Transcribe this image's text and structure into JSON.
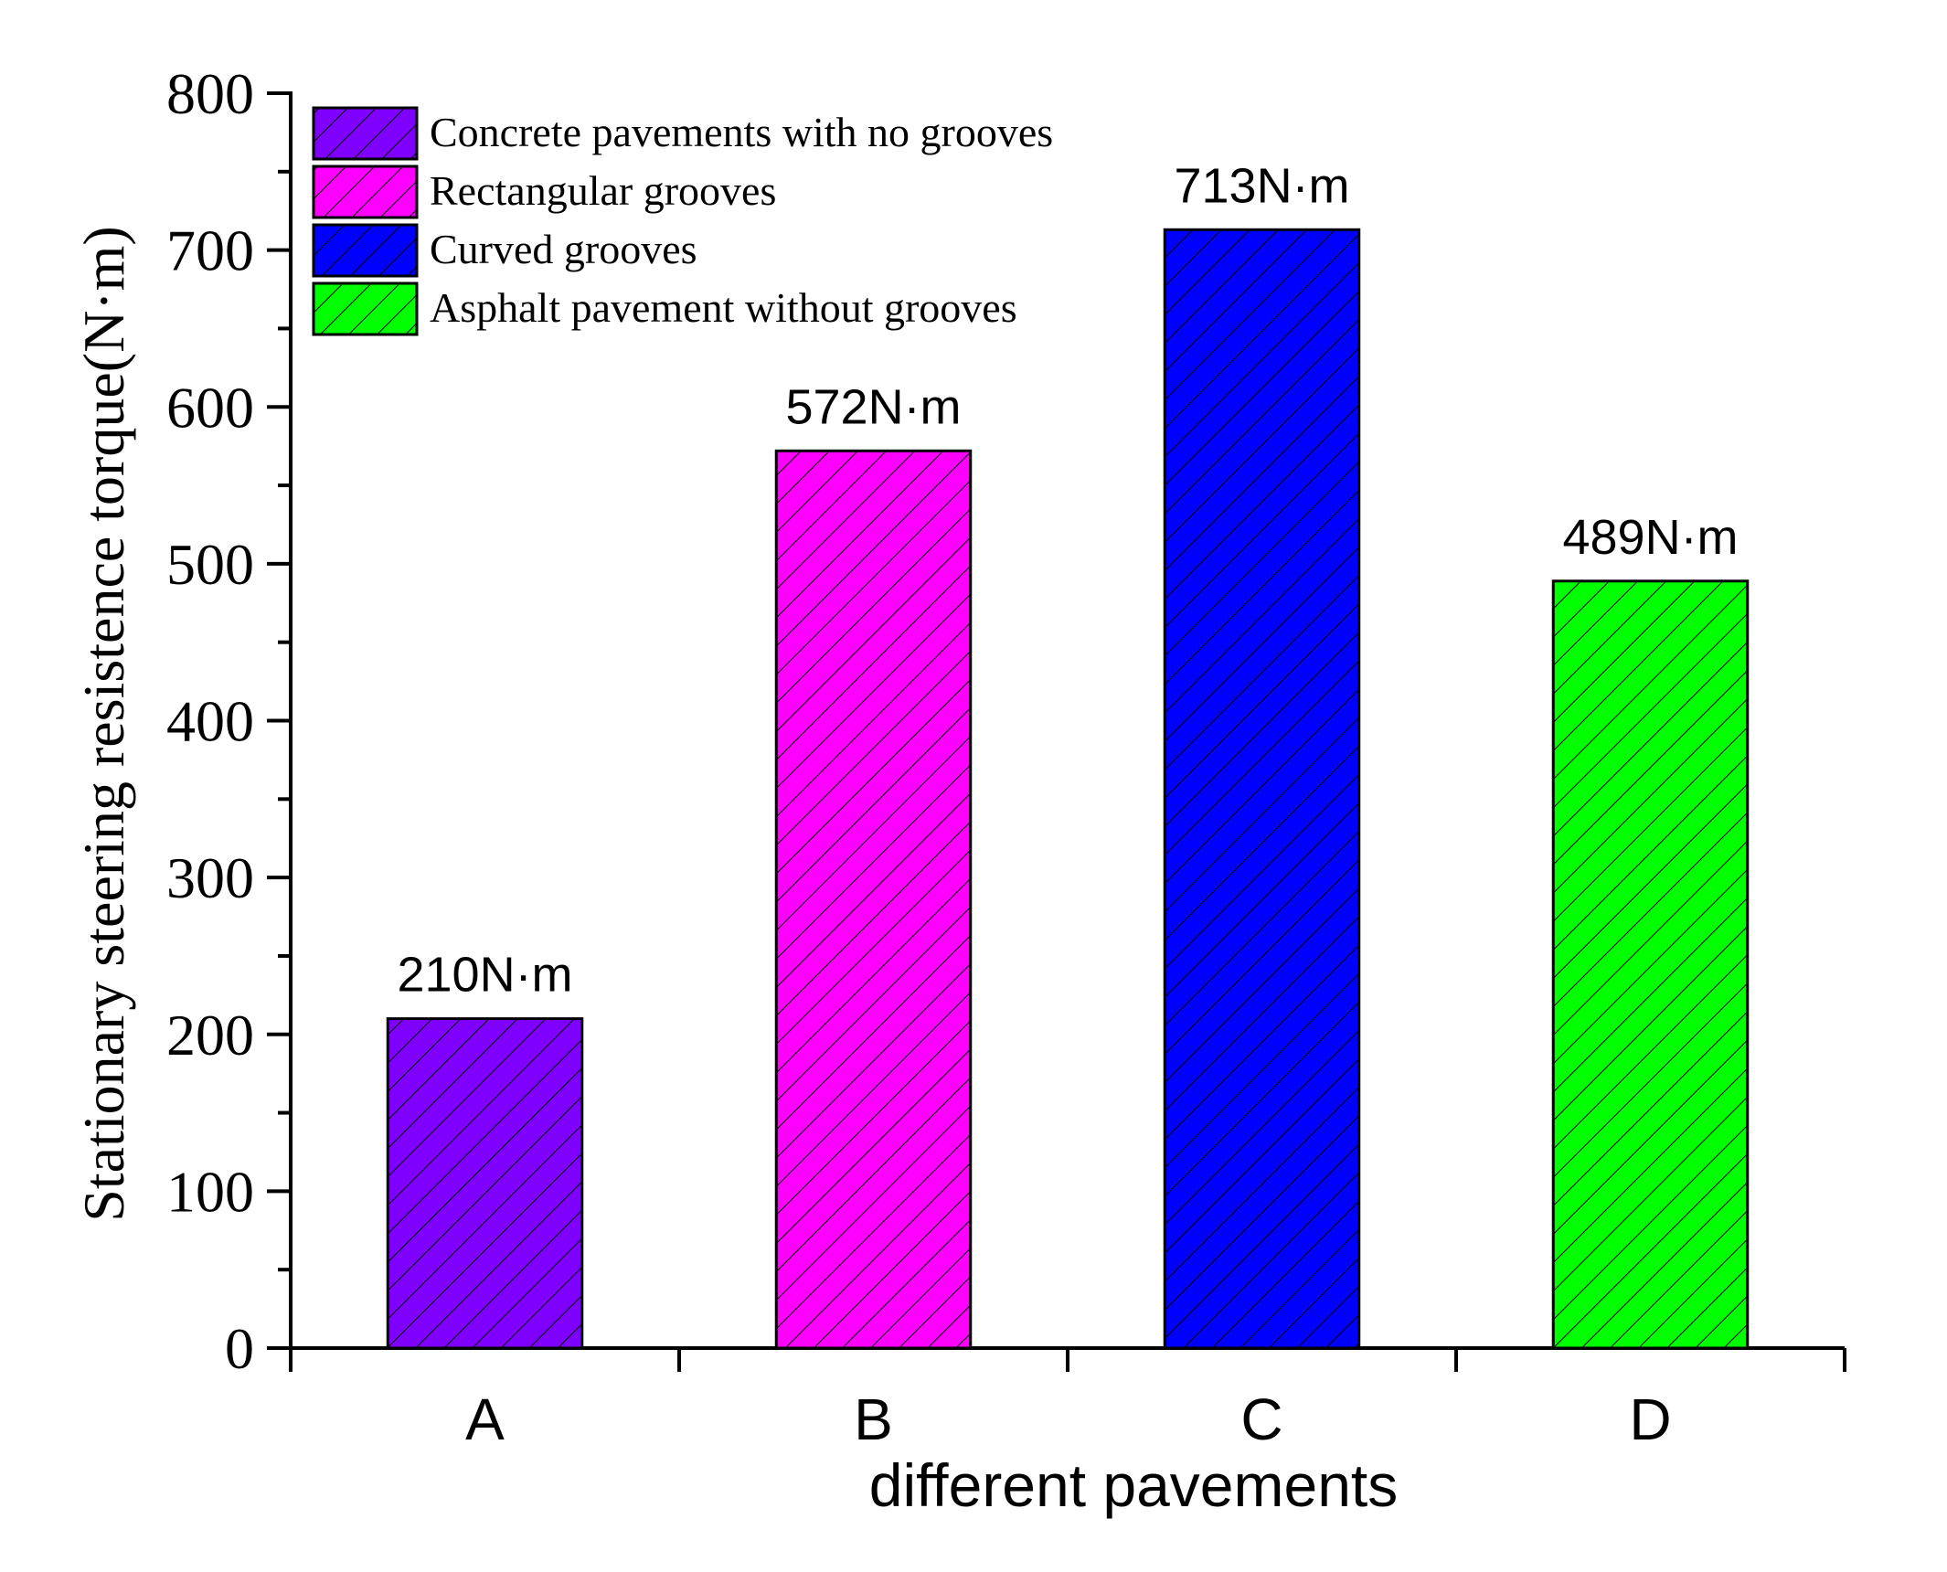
{
  "chart_data": {
    "type": "bar",
    "categories": [
      "A",
      "B",
      "C",
      "D"
    ],
    "values": [
      210,
      572,
      713,
      489
    ],
    "value_labels": [
      "210N·m",
      "572N·m",
      "713N·m",
      "489N·m"
    ],
    "colors": [
      "#8000ff",
      "#ff00ff",
      "#0000ff",
      "#00ff00"
    ],
    "legend": [
      "Concrete pavements with no grooves",
      "Rectangular grooves",
      "Curved grooves",
      "Asphalt pavement without grooves"
    ],
    "legend_position": "top-left",
    "xlabel": "different pavements",
    "ylabel": "Stationary steering resistence torque(N·m)",
    "ylim": [
      0,
      800
    ],
    "yticks": [
      "0",
      "100",
      "200",
      "300",
      "400",
      "500",
      "600",
      "700",
      "800"
    ],
    "grid": false,
    "hatch": "diagonal"
  }
}
